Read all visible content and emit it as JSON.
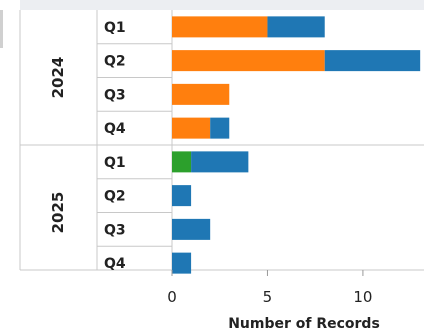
{
  "chart_data": {
    "type": "bar",
    "orientation": "horizontal",
    "stacked": true,
    "groups": [
      {
        "year": "2024",
        "quarters": [
          "Q1",
          "Q2",
          "Q3",
          "Q4"
        ]
      },
      {
        "year": "2025",
        "quarters": [
          "Q1",
          "Q2",
          "Q3",
          "Q4"
        ]
      }
    ],
    "series": [
      {
        "color": "#2ca02c",
        "values": [
          0,
          0,
          0,
          0,
          1,
          0,
          0,
          0
        ]
      },
      {
        "color": "#ff7f0e",
        "values": [
          5,
          8,
          3,
          2,
          0,
          0,
          0,
          0
        ]
      },
      {
        "color": "#1f77b4",
        "values": [
          3,
          5,
          0,
          1,
          3,
          1,
          2,
          1
        ]
      }
    ],
    "x_ticks": [
      0,
      5,
      10
    ],
    "xlabel": "Number of Records",
    "xlim": [
      0,
      13.2
    ]
  }
}
